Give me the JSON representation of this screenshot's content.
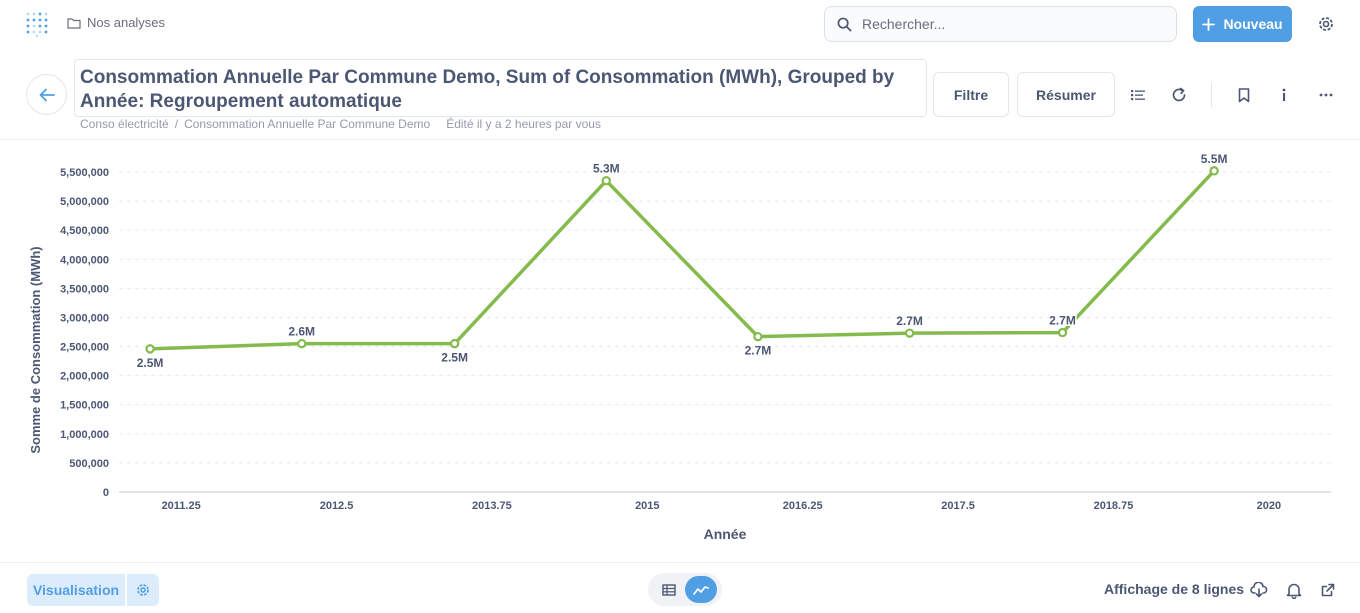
{
  "nav": {
    "breadcrumb": "Nos analyses",
    "search_placeholder": "Rechercher...",
    "new_label": "Nouveau"
  },
  "header": {
    "title": "Consommation Annuelle Par Commune Demo, Sum of Consommation (MWh), Grouped by Année: Regroupement automatique",
    "crumb_collection": "Conso électricité",
    "crumb_separator": "/",
    "crumb_table": "Consommation Annuelle Par Commune Demo",
    "edited": "Édité il y a 2 heures par vous",
    "filter_label": "Filtre",
    "summarize_label": "Résumer"
  },
  "colors": {
    "accent": "#509ee3",
    "series": "#84bb4c"
  },
  "chart_data": {
    "type": "line",
    "xlabel": "Année",
    "ylabel": "Somme de Consommation (MWh)",
    "xlim": [
      2010.75,
      2020.5
    ],
    "ylim": [
      0,
      5500000
    ],
    "x_ticks": [
      2011.25,
      2012.5,
      2013.75,
      2015,
      2016.25,
      2017.5,
      2018.75,
      2020
    ],
    "x_tick_labels": [
      "2011.25",
      "2012.5",
      "2013.75",
      "2015",
      "2016.25",
      "2017.5",
      "2018.75",
      "2020"
    ],
    "y_ticks": [
      0,
      500000,
      1000000,
      1500000,
      2000000,
      2500000,
      3000000,
      3500000,
      4000000,
      4500000,
      5000000,
      5500000
    ],
    "y_tick_labels": [
      "0",
      "500,000",
      "1,000,000",
      "1,500,000",
      "2,000,000",
      "2,500,000",
      "3,000,000",
      "3,500,000",
      "4,000,000",
      "4,500,000",
      "5,000,000",
      "5,500,000"
    ],
    "grid": true,
    "series": [
      {
        "x": [
          2011,
          2012.22,
          2013.45,
          2014.67,
          2015.89,
          2017.11,
          2018.34,
          2019.56
        ],
        "values": [
          2460000,
          2550000,
          2550000,
          5350000,
          2670000,
          2730000,
          2740000,
          5520000
        ],
        "labels": [
          "2.5M",
          "2.6M",
          "2.5M",
          "5.3M",
          "2.7M",
          "2.7M",
          "2.7M",
          "5.5M"
        ],
        "label_pos": [
          "below",
          "above",
          "below",
          "above",
          "below",
          "above",
          "above",
          "above"
        ]
      }
    ]
  },
  "footer": {
    "visualization_label": "Visualisation",
    "row_count": "Affichage de 8 lignes"
  }
}
